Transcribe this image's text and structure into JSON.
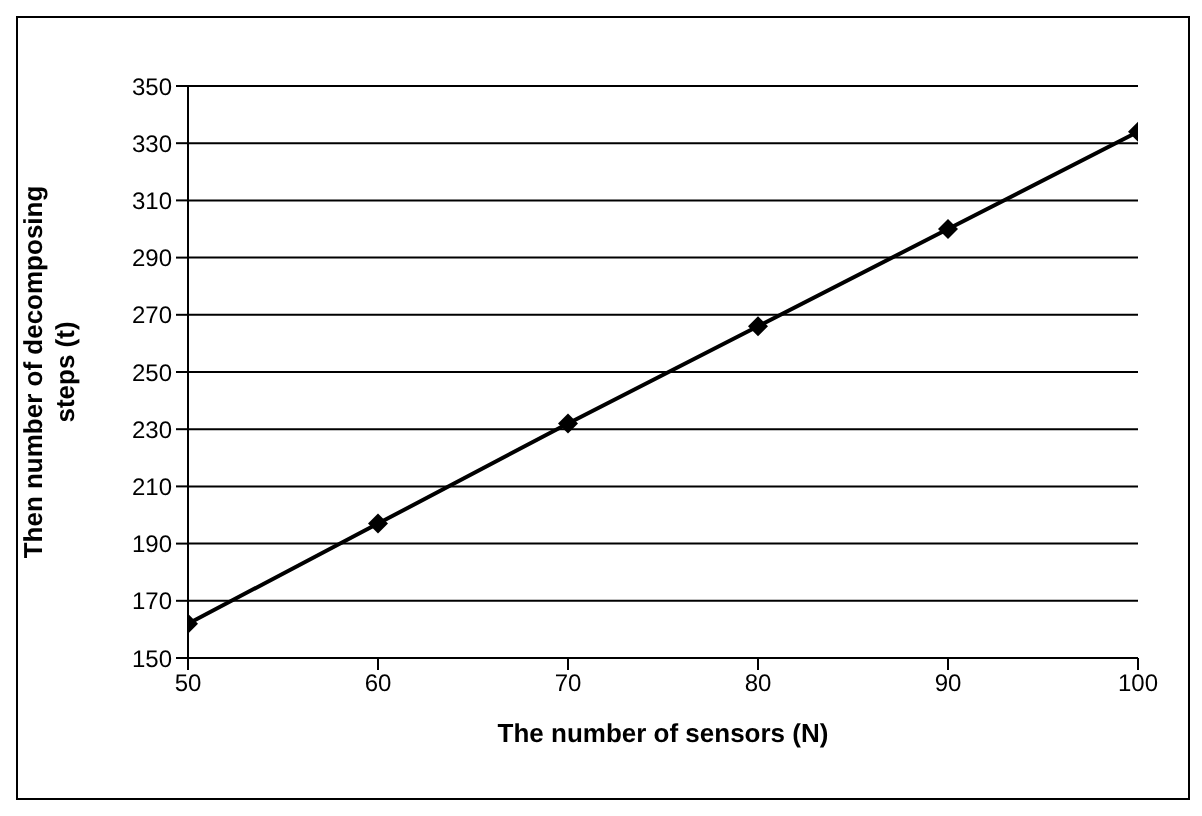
{
  "chart_data": {
    "type": "line",
    "xlabel": "The number of sensors (N)",
    "ylabel": "Then number of decomposing steps (t)",
    "x": [
      50,
      60,
      70,
      80,
      90,
      100
    ],
    "series": [
      {
        "color": "#000000",
        "values": [
          162,
          197,
          232,
          266,
          300,
          334
        ]
      }
    ],
    "xlim": [
      50,
      100
    ],
    "xticks": [
      50,
      60,
      70,
      80,
      90,
      100
    ],
    "ylim": [
      150,
      350
    ],
    "yticks": [
      150,
      170,
      190,
      210,
      230,
      250,
      270,
      290,
      310,
      330,
      350
    ],
    "grid": "y",
    "marker": "diamond",
    "line_style": "solid",
    "legend": false
  }
}
